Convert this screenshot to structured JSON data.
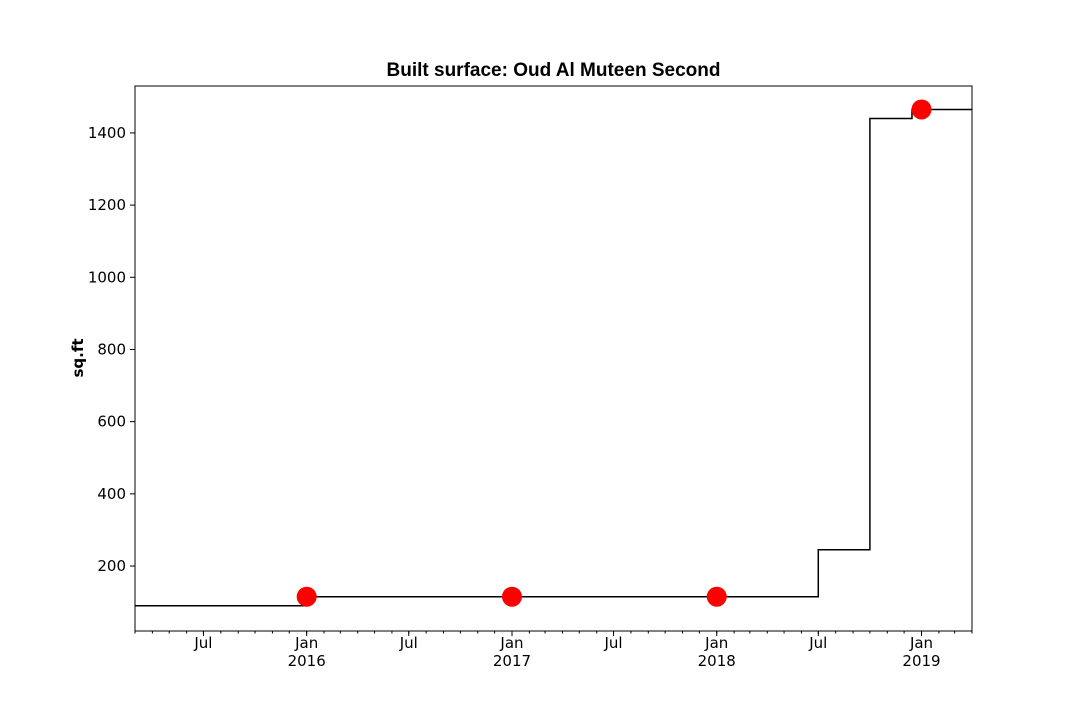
{
  "chart_data": {
    "type": "line",
    "title": "Built surface: Oud Al Muteen Second",
    "xlabel": "",
    "ylabel": "sq.ft",
    "x_range": [
      "2015-03-01",
      "2019-04-01"
    ],
    "ylim": [
      20,
      1530
    ],
    "yticks": [
      200,
      400,
      600,
      800,
      1000,
      1200,
      1400
    ],
    "xticks": [
      {
        "date": "2015-07-01",
        "label": "Jul",
        "sublabel": ""
      },
      {
        "date": "2016-01-01",
        "label": "Jan",
        "sublabel": "2016"
      },
      {
        "date": "2016-07-01",
        "label": "Jul",
        "sublabel": ""
      },
      {
        "date": "2017-01-01",
        "label": "Jan",
        "sublabel": "2017"
      },
      {
        "date": "2017-07-01",
        "label": "Jul",
        "sublabel": ""
      },
      {
        "date": "2018-01-01",
        "label": "Jan",
        "sublabel": "2018"
      },
      {
        "date": "2018-07-01",
        "label": "Jul",
        "sublabel": ""
      },
      {
        "date": "2019-01-01",
        "label": "Jan",
        "sublabel": "2019"
      }
    ],
    "grid": false,
    "series": [
      {
        "style": "step",
        "color": "#000000",
        "points": [
          {
            "x": "2015-03-01",
            "y": 90
          },
          {
            "x": "2016-01-01",
            "y": 115
          },
          {
            "x": "2018-07-01",
            "y": 245
          },
          {
            "x": "2018-10-01",
            "y": 1440
          },
          {
            "x": "2018-12-15",
            "y": 1465
          },
          {
            "x": "2019-04-01",
            "y": 1465
          }
        ]
      },
      {
        "style": "markers",
        "color": "#ff0000",
        "points": [
          {
            "x": "2016-01-01",
            "y": 115
          },
          {
            "x": "2017-01-01",
            "y": 115
          },
          {
            "x": "2018-01-01",
            "y": 115
          },
          {
            "x": "2019-01-01",
            "y": 1465
          }
        ]
      }
    ]
  }
}
